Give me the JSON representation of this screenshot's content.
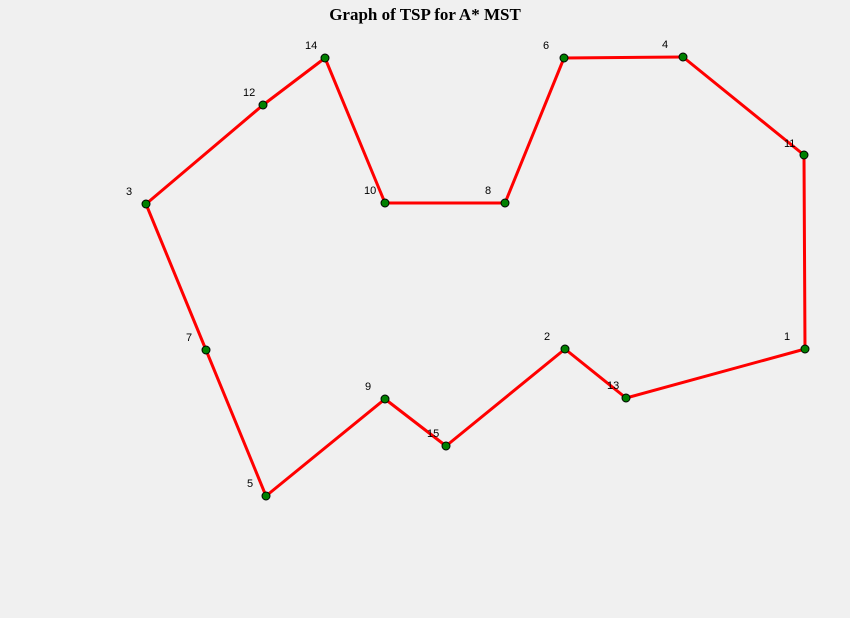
{
  "window": {
    "title": "Graph of TSP for A* MST"
  },
  "colors": {
    "background": "#f0f0f0",
    "edge": "#ff0000",
    "node_fill": "#008000",
    "node_stroke": "#000000",
    "label": "#000000"
  },
  "graph": {
    "nodes": [
      {
        "id": "1",
        "label": "1"
      },
      {
        "id": "2",
        "label": "2"
      },
      {
        "id": "3",
        "label": "3"
      },
      {
        "id": "4",
        "label": "4"
      },
      {
        "id": "5",
        "label": "5"
      },
      {
        "id": "6",
        "label": "6"
      },
      {
        "id": "7",
        "label": "7"
      },
      {
        "id": "8",
        "label": "8"
      },
      {
        "id": "9",
        "label": "9"
      },
      {
        "id": "10",
        "label": "10"
      },
      {
        "id": "11",
        "label": "11"
      },
      {
        "id": "12",
        "label": "12"
      },
      {
        "id": "13",
        "label": "13"
      },
      {
        "id": "14",
        "label": "14"
      },
      {
        "id": "15",
        "label": "15"
      }
    ],
    "tour": [
      "1",
      "11",
      "4",
      "6",
      "8",
      "10",
      "14",
      "12",
      "3",
      "7",
      "5",
      "9",
      "15",
      "2",
      "13",
      "1"
    ]
  }
}
